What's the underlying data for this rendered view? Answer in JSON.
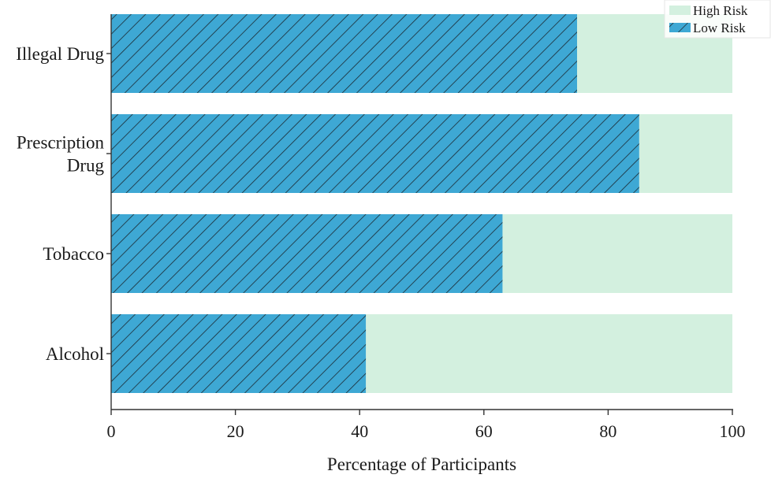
{
  "chart_data": {
    "type": "bar",
    "orientation": "horizontal",
    "stacked": true,
    "categories": [
      "Illegal Drug",
      "Prescription Drug",
      "Tobacco",
      "Alcohol"
    ],
    "category_lines": [
      [
        "Illegal Drug"
      ],
      [
        "Prescription",
        "Drug"
      ],
      [
        "Tobacco"
      ],
      [
        "Alcohol"
      ]
    ],
    "series": [
      {
        "name": "Low Risk",
        "values": [
          75,
          85,
          63,
          41
        ],
        "color": "#3ea8d4",
        "hatch": "diagonal"
      },
      {
        "name": "High Risk",
        "values": [
          25,
          15,
          37,
          59
        ],
        "color": "#d3f0df"
      }
    ],
    "xlabel": "Percentage of Participants",
    "ylabel": "",
    "xlim": [
      0,
      100
    ],
    "xticks": [
      0,
      20,
      40,
      60,
      80,
      100
    ],
    "grid": false,
    "legend": {
      "position": "top-right",
      "order": [
        "High Risk",
        "Low Risk"
      ]
    }
  }
}
